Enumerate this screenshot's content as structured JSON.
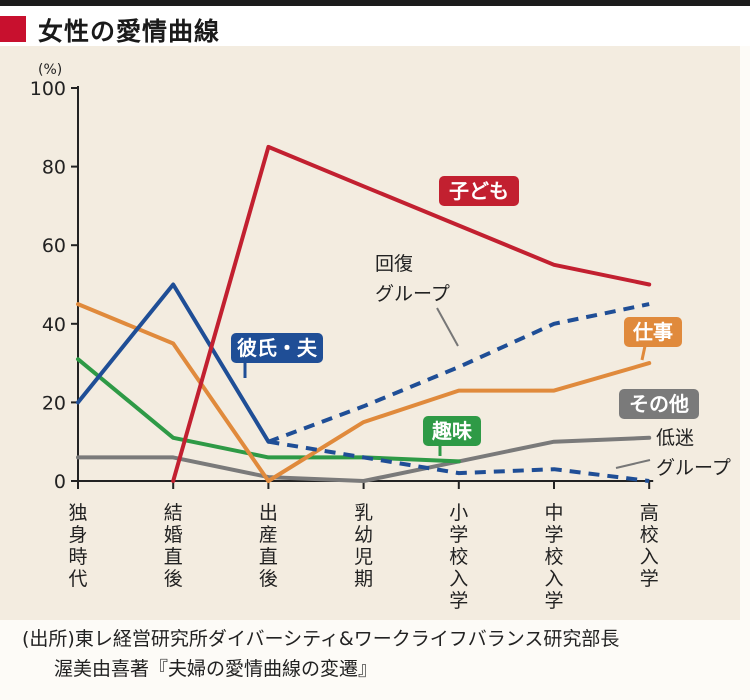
{
  "title": "女性の愛情曲線",
  "colors": {
    "title_marker": "#c8102e",
    "kodomo": "#c22030",
    "kareshi": "#1f4e96",
    "shigoto": "#e08a3c",
    "shumi": "#2e9a46",
    "sonota": "#7a7a7a",
    "kaifuku": "#1f4e96",
    "teimei": "#1f4e96"
  },
  "chart_data": {
    "type": "line",
    "title": "女性の愛情曲線",
    "ylabel": "(%)",
    "ylim": [
      0,
      100
    ],
    "yticks": [
      "0",
      "20",
      "40",
      "60",
      "80",
      "100"
    ],
    "categories": [
      "独身時代",
      "結婚直後",
      "出産直後",
      "乳幼児期",
      "小学校入学",
      "中学校入学",
      "高校入学"
    ],
    "grid": false,
    "legend": "inline labels",
    "series": [
      {
        "name": "子ども",
        "values": [
          null,
          0,
          85,
          75,
          65,
          55,
          50
        ],
        "style": "solid"
      },
      {
        "name": "彼氏・夫",
        "values": [
          20,
          50,
          10,
          null,
          null,
          null,
          null
        ],
        "style": "solid"
      },
      {
        "name": "仕事",
        "values": [
          45,
          35,
          0,
          15,
          23,
          23,
          30
        ],
        "style": "solid"
      },
      {
        "name": "趣味",
        "values": [
          31,
          11,
          6,
          6,
          5,
          null,
          null
        ],
        "style": "solid"
      },
      {
        "name": "その他",
        "values": [
          6,
          6,
          1,
          0,
          5,
          10,
          11
        ],
        "style": "solid"
      },
      {
        "name": "回復グループ",
        "values": [
          null,
          null,
          10,
          19,
          29,
          40,
          45
        ],
        "style": "dashed"
      },
      {
        "name": "低迷グループ",
        "values": [
          null,
          null,
          10,
          6,
          2,
          3,
          0
        ],
        "style": "dashed"
      }
    ],
    "annotations": {
      "kaifuku_line1": "回復",
      "kaifuku_line2": "グループ",
      "teimei_line1": "低迷",
      "teimei_line2": "グループ"
    }
  },
  "source": {
    "line1": "(出所)東レ経営研究所ダイバーシティ&ワークライフバランス研究部長",
    "line2": "渥美由喜著『夫婦の愛情曲線の変遷』"
  }
}
